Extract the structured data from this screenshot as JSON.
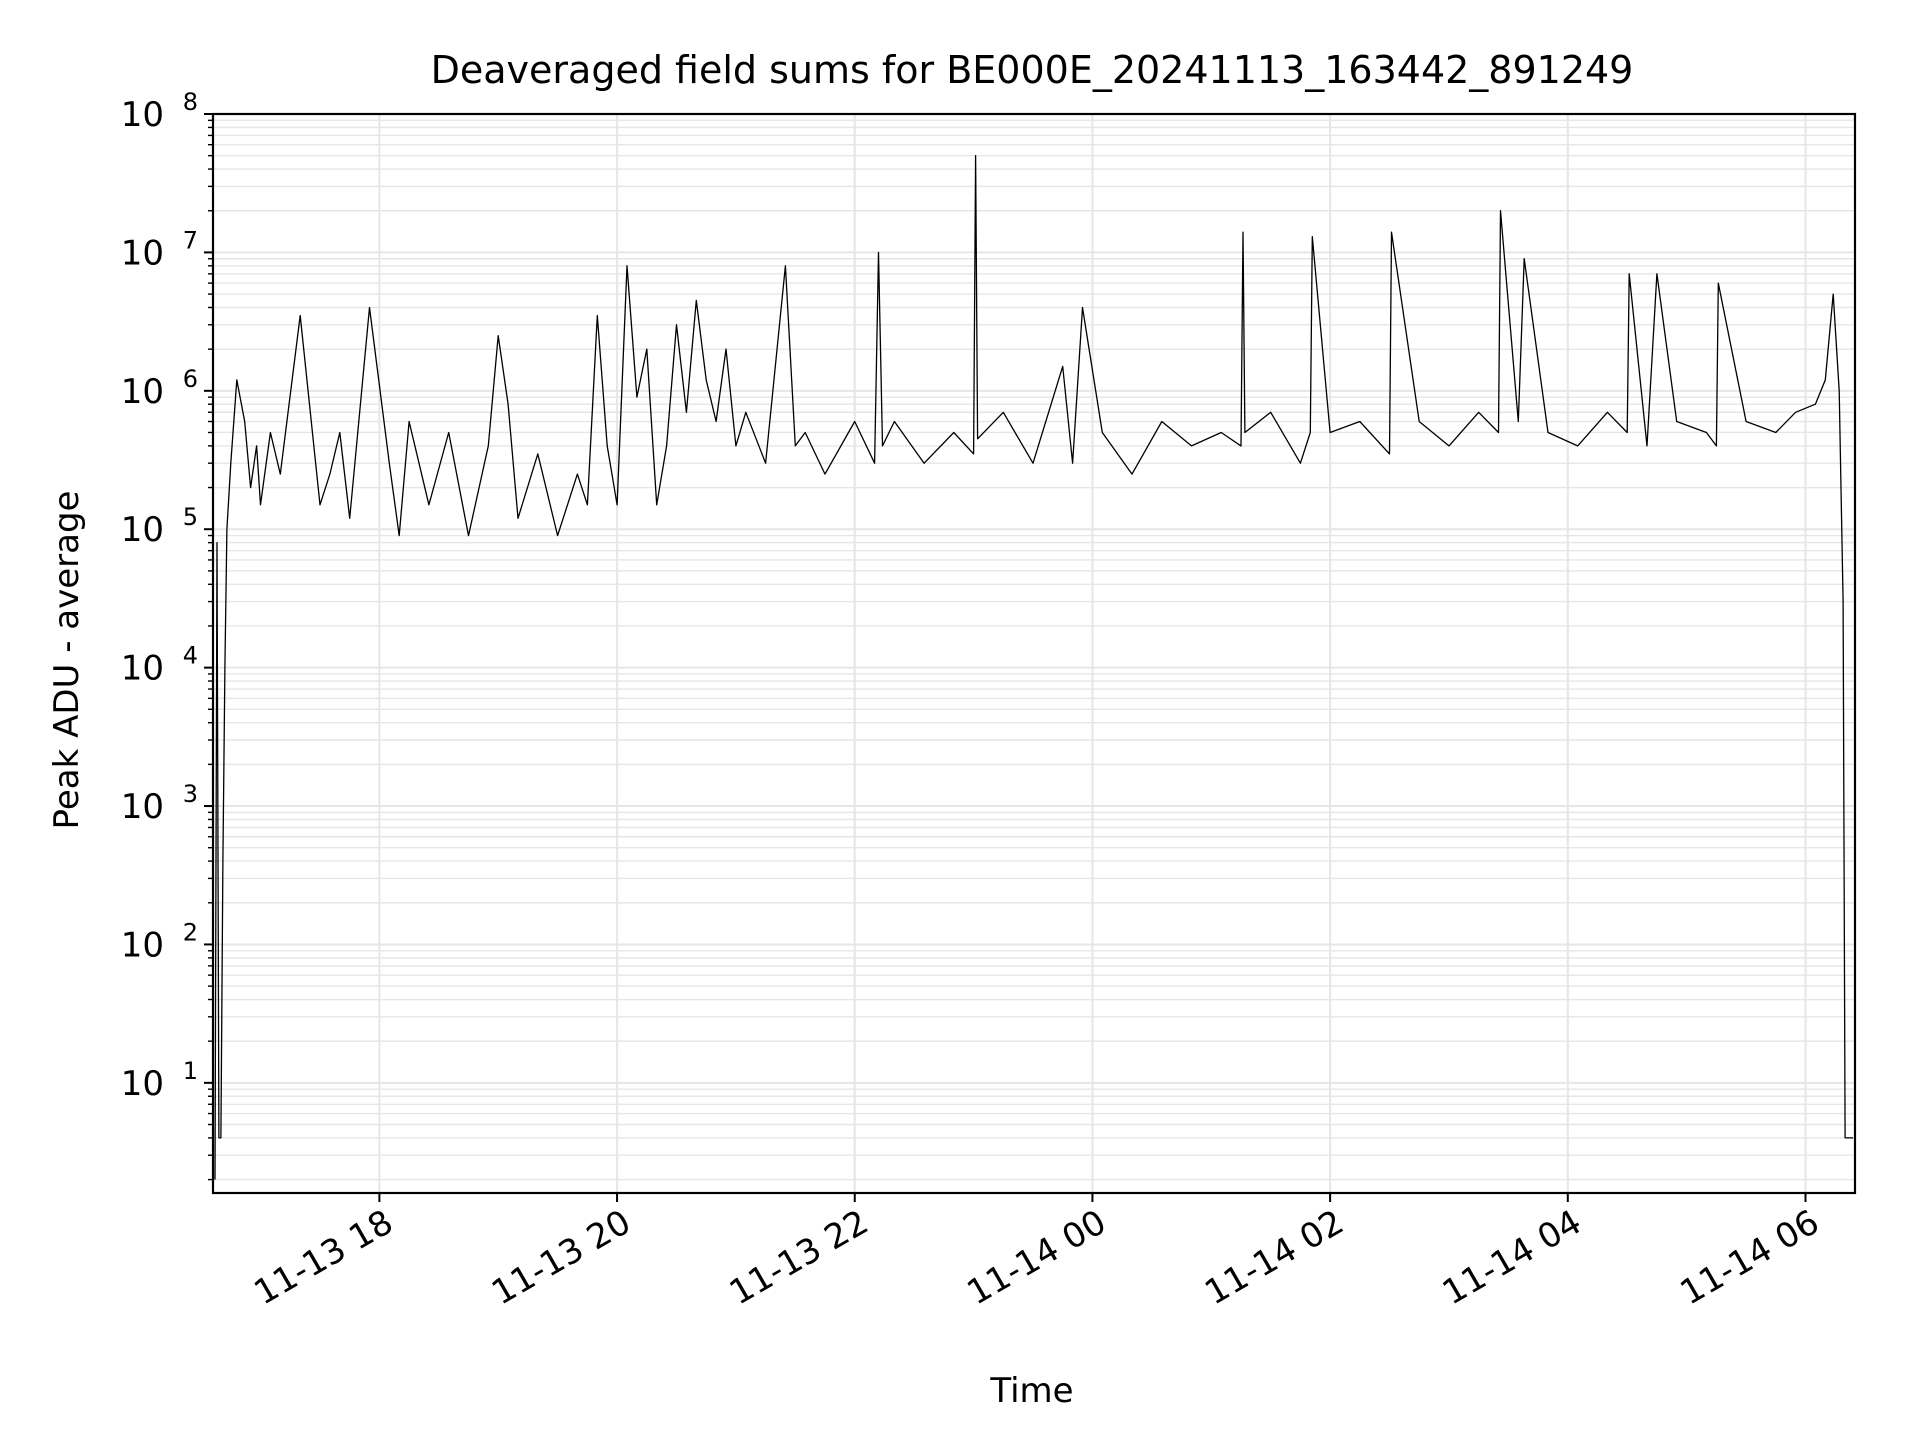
{
  "chart_data": {
    "type": "line",
    "title": "Deaveraged field sums for BE000E_20241113_163442_891249",
    "xlabel": "Time",
    "ylabel": "Peak ADU - average",
    "yscale": "log",
    "ylim": [
      1.6,
      100000000
    ],
    "xlim": [
      "2024-11-13 16:36",
      "2024-11-14 06:25"
    ],
    "grid": true,
    "grid_minor": true,
    "line_color": "#000000",
    "grid_color": "#e6e6e6",
    "xticks": [
      {
        "value": "2024-11-13 18:00",
        "label": "11-13 18"
      },
      {
        "value": "2024-11-13 20:00",
        "label": "11-13 20"
      },
      {
        "value": "2024-11-13 22:00",
        "label": "11-13 22"
      },
      {
        "value": "2024-11-14 00:00",
        "label": "11-14 00"
      },
      {
        "value": "2024-11-14 02:00",
        "label": "11-14 02"
      },
      {
        "value": "2024-11-14 04:00",
        "label": "11-14 04"
      },
      {
        "value": "2024-11-14 06:00",
        "label": "11-14 06"
      }
    ],
    "yticks": [
      {
        "value": 10,
        "base": "10",
        "exp": "1"
      },
      {
        "value": 100,
        "base": "10",
        "exp": "2"
      },
      {
        "value": 1000,
        "base": "10",
        "exp": "3"
      },
      {
        "value": 10000,
        "base": "10",
        "exp": "4"
      },
      {
        "value": 100000,
        "base": "10",
        "exp": "5"
      },
      {
        "value": 1000000,
        "base": "10",
        "exp": "6"
      },
      {
        "value": 10000000,
        "base": "10",
        "exp": "7"
      },
      {
        "value": 100000000,
        "base": "10",
        "exp": "8"
      }
    ],
    "series": [
      {
        "x": [
          "2024-11-13 16:37",
          "2024-11-13 16:38",
          "2024-11-13 16:39",
          "2024-11-13 16:40",
          "2024-11-13 16:41",
          "2024-11-13 16:42",
          "2024-11-13 16:43",
          "2024-11-13 16:45",
          "2024-11-13 16:48",
          "2024-11-13 16:52",
          "2024-11-13 16:55",
          "2024-11-13 16:58",
          "2024-11-13 17:00",
          "2024-11-13 17:05",
          "2024-11-13 17:10",
          "2024-11-13 17:20",
          "2024-11-13 17:30",
          "2024-11-13 17:35",
          "2024-11-13 17:40",
          "2024-11-13 17:45",
          "2024-11-13 17:55",
          "2024-11-13 18:05",
          "2024-11-13 18:10",
          "2024-11-13 18:15",
          "2024-11-13 18:25",
          "2024-11-13 18:35",
          "2024-11-13 18:45",
          "2024-11-13 18:55",
          "2024-11-13 19:00",
          "2024-11-13 19:05",
          "2024-11-13 19:10",
          "2024-11-13 19:20",
          "2024-11-13 19:30",
          "2024-11-13 19:40",
          "2024-11-13 19:45",
          "2024-11-13 19:50",
          "2024-11-13 19:55",
          "2024-11-13 20:00",
          "2024-11-13 20:05",
          "2024-11-13 20:10",
          "2024-11-13 20:15",
          "2024-11-13 20:20",
          "2024-11-13 20:25",
          "2024-11-13 20:30",
          "2024-11-13 20:35",
          "2024-11-13 20:40",
          "2024-11-13 20:45",
          "2024-11-13 20:50",
          "2024-11-13 20:55",
          "2024-11-13 21:00",
          "2024-11-13 21:05",
          "2024-11-13 21:15",
          "2024-11-13 21:25",
          "2024-11-13 21:30",
          "2024-11-13 21:35",
          "2024-11-13 21:45",
          "2024-11-13 22:00",
          "2024-11-13 22:10",
          "2024-11-13 22:12",
          "2024-11-13 22:14",
          "2024-11-13 22:20",
          "2024-11-13 22:35",
          "2024-11-13 22:50",
          "2024-11-13 23:00",
          "2024-11-13 23:01",
          "2024-11-13 23:02",
          "2024-11-13 23:15",
          "2024-11-13 23:30",
          "2024-11-13 23:45",
          "2024-11-13 23:50",
          "2024-11-13 23:55",
          "2024-11-14 00:05",
          "2024-11-14 00:20",
          "2024-11-14 00:35",
          "2024-11-14 00:50",
          "2024-11-14 01:05",
          "2024-11-14 01:15",
          "2024-11-14 01:16",
          "2024-11-14 01:17",
          "2024-11-14 01:30",
          "2024-11-14 01:45",
          "2024-11-14 01:50",
          "2024-11-14 01:51",
          "2024-11-14 02:00",
          "2024-11-14 02:15",
          "2024-11-14 02:30",
          "2024-11-14 02:31",
          "2024-11-14 02:45",
          "2024-11-14 03:00",
          "2024-11-14 03:15",
          "2024-11-14 03:25",
          "2024-11-14 03:26",
          "2024-11-14 03:35",
          "2024-11-14 03:38",
          "2024-11-14 03:50",
          "2024-11-14 04:05",
          "2024-11-14 04:20",
          "2024-11-14 04:30",
          "2024-11-14 04:31",
          "2024-11-14 04:40",
          "2024-11-14 04:45",
          "2024-11-14 04:55",
          "2024-11-14 05:10",
          "2024-11-14 05:15",
          "2024-11-14 05:16",
          "2024-11-14 05:30",
          "2024-11-14 05:45",
          "2024-11-14 05:55",
          "2024-11-14 06:05",
          "2024-11-14 06:10",
          "2024-11-14 06:14",
          "2024-11-14 06:17",
          "2024-11-14 06:19",
          "2024-11-14 06:20",
          "2024-11-14 06:21",
          "2024-11-14 06:22",
          "2024-11-14 06:24"
        ],
        "y": [
          2,
          80000,
          4,
          4,
          400,
          10000,
          100000,
          300000,
          1200000,
          600000,
          200000,
          400000,
          150000,
          500000,
          250000,
          3500000,
          150000,
          250000,
          500000,
          120000,
          4000000,
          300000,
          90000,
          600000,
          150000,
          500000,
          90000,
          400000,
          2500000,
          800000,
          120000,
          350000,
          90000,
          250000,
          150000,
          3500000,
          400000,
          150000,
          8000000,
          900000,
          2000000,
          150000,
          400000,
          3000000,
          700000,
          4500000,
          1200000,
          600000,
          2000000,
          400000,
          700000,
          300000,
          8000000,
          400000,
          500000,
          250000,
          600000,
          300000,
          10000000,
          400000,
          600000,
          300000,
          500000,
          350000,
          50000000,
          450000,
          700000,
          300000,
          1500000,
          300000,
          4000000,
          500000,
          250000,
          600000,
          400000,
          500000,
          400000,
          14000000,
          500000,
          700000,
          300000,
          500000,
          13000000,
          500000,
          600000,
          350000,
          14000000,
          600000,
          400000,
          700000,
          500000,
          20000000,
          600000,
          9000000,
          500000,
          400000,
          700000,
          500000,
          7000000,
          400000,
          7000000,
          600000,
          500000,
          400000,
          6000000,
          600000,
          500000,
          700000,
          800000,
          1200000,
          5000000,
          1000000,
          30000,
          4,
          4,
          4,
          4
        ]
      }
    ]
  }
}
